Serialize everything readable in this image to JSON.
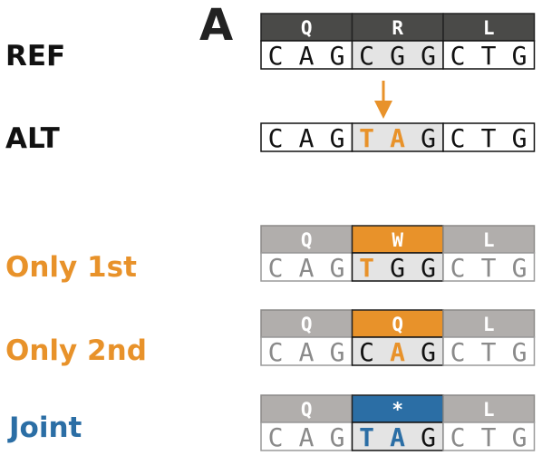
{
  "panel_label": "A",
  "colors": {
    "dark_header": "#4a4a48",
    "grey_header": "#b1aeac",
    "orange": "#e8922a",
    "blue": "#2b6ea5",
    "black": "#111111",
    "grey_text": "#8a8a8a",
    "codon_fill": "#e4e4e4"
  },
  "rows": [
    {
      "id": "ref",
      "label": "REF",
      "label_color": "#111111",
      "has_header": true,
      "header_style": "dark",
      "codons": [
        {
          "aa": "Q",
          "bases": [
            "C",
            "A",
            "G"
          ],
          "highlight": false,
          "aa_color": "",
          "base_colors": [
            "black",
            "black",
            "black"
          ]
        },
        {
          "aa": "R",
          "bases": [
            "C",
            "G",
            "G"
          ],
          "highlight": true,
          "aa_color": "",
          "base_colors": [
            "black",
            "black",
            "black"
          ]
        },
        {
          "aa": "L",
          "bases": [
            "C",
            "T",
            "G"
          ],
          "highlight": false,
          "aa_color": "",
          "base_colors": [
            "black",
            "black",
            "black"
          ]
        }
      ]
    },
    {
      "id": "alt",
      "label": "ALT",
      "label_color": "#111111",
      "has_header": false,
      "header_style": "",
      "codons": [
        {
          "aa": "",
          "bases": [
            "C",
            "A",
            "G"
          ],
          "highlight": false,
          "aa_color": "",
          "base_colors": [
            "black",
            "black",
            "black"
          ]
        },
        {
          "aa": "",
          "bases": [
            "T",
            "A",
            "G"
          ],
          "highlight": true,
          "aa_color": "",
          "base_colors": [
            "orange",
            "orange",
            "black"
          ]
        },
        {
          "aa": "",
          "bases": [
            "C",
            "T",
            "G"
          ],
          "highlight": false,
          "aa_color": "",
          "base_colors": [
            "black",
            "black",
            "black"
          ]
        }
      ]
    },
    {
      "id": "only1",
      "label": "Only 1st",
      "label_color": "#e8922a",
      "has_header": true,
      "header_style": "grey",
      "codons": [
        {
          "aa": "Q",
          "bases": [
            "C",
            "A",
            "G"
          ],
          "highlight": false,
          "aa_color": "",
          "base_colors": [
            "grey",
            "grey",
            "grey"
          ]
        },
        {
          "aa": "W",
          "bases": [
            "T",
            "G",
            "G"
          ],
          "highlight": true,
          "aa_color": "orange",
          "base_colors": [
            "orange",
            "black",
            "black"
          ]
        },
        {
          "aa": "L",
          "bases": [
            "C",
            "T",
            "G"
          ],
          "highlight": false,
          "aa_color": "",
          "base_colors": [
            "grey",
            "grey",
            "grey"
          ]
        }
      ]
    },
    {
      "id": "only2",
      "label": "Only 2nd",
      "label_color": "#e8922a",
      "has_header": true,
      "header_style": "grey",
      "codons": [
        {
          "aa": "Q",
          "bases": [
            "C",
            "A",
            "G"
          ],
          "highlight": false,
          "aa_color": "",
          "base_colors": [
            "grey",
            "grey",
            "grey"
          ]
        },
        {
          "aa": "Q",
          "bases": [
            "C",
            "A",
            "G"
          ],
          "highlight": true,
          "aa_color": "orange",
          "base_colors": [
            "black",
            "orange",
            "black"
          ]
        },
        {
          "aa": "L",
          "bases": [
            "C",
            "T",
            "G"
          ],
          "highlight": false,
          "aa_color": "",
          "base_colors": [
            "grey",
            "grey",
            "grey"
          ]
        }
      ]
    },
    {
      "id": "joint",
      "label": "Joint",
      "label_color": "#2b6ea5",
      "has_header": true,
      "header_style": "grey",
      "codons": [
        {
          "aa": "Q",
          "bases": [
            "C",
            "A",
            "G"
          ],
          "highlight": false,
          "aa_color": "",
          "base_colors": [
            "grey",
            "grey",
            "grey"
          ]
        },
        {
          "aa": "*",
          "bases": [
            "T",
            "A",
            "G"
          ],
          "highlight": true,
          "aa_color": "blue",
          "base_colors": [
            "blue",
            "blue",
            "black"
          ]
        },
        {
          "aa": "L",
          "bases": [
            "C",
            "T",
            "G"
          ],
          "highlight": false,
          "aa_color": "",
          "base_colors": [
            "grey",
            "grey",
            "grey"
          ]
        }
      ]
    }
  ]
}
